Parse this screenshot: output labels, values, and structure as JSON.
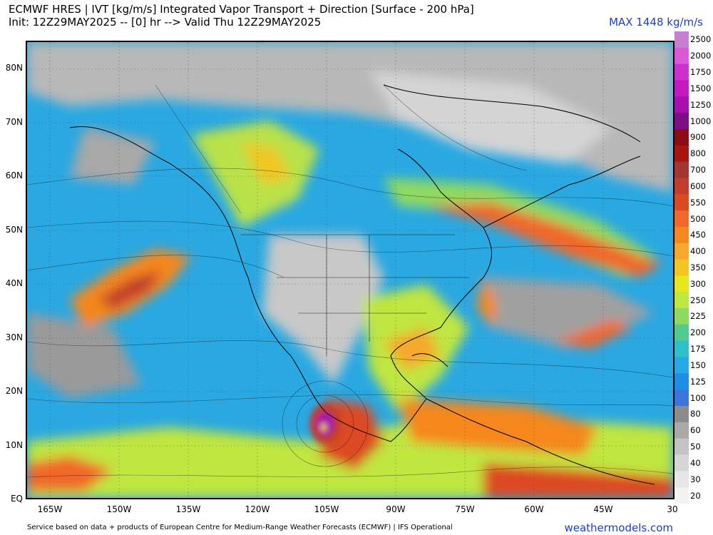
{
  "header": {
    "title_line1": "ECMWF HRES | IVT [kg/m/s] Integrated Vapor Transport + Direction [Surface - 200 hPa]",
    "title_line2": "Init: 12Z29MAY2025 -- [0] hr --> Valid Thu 12Z29MAY2025",
    "max_label": "MAX 1448 kg/m/s"
  },
  "footer": {
    "credit": "Service based on data + products of European Centre for Medium-Range Weather Forecasts (ECMWF) | IFS Operational",
    "site": "weathermodels.com"
  },
  "axes": {
    "lat_labels": [
      "80N",
      "70N",
      "60N",
      "50N",
      "40N",
      "30N",
      "20N",
      "10N",
      "EQ"
    ],
    "lon_labels": [
      "165W",
      "150W",
      "135W",
      "120W",
      "105W",
      "90W",
      "75W",
      "60W",
      "45W",
      "30"
    ]
  },
  "colorbar": {
    "labels": [
      "2500",
      "2000",
      "1750",
      "1500",
      "1250",
      "1000",
      "900",
      "800",
      "700",
      "600",
      "550",
      "500",
      "450",
      "400",
      "350",
      "300",
      "250",
      "225",
      "200",
      "175",
      "150",
      "125",
      "100",
      "80",
      "60",
      "50",
      "40",
      "30",
      "20"
    ],
    "colors": [
      "#c77fd0",
      "#d85ad6",
      "#cf2fd0",
      "#c318c4",
      "#a90fb0",
      "#7d0e85",
      "#8e0a14",
      "#a8140e",
      "#a33532",
      "#c23d2c",
      "#dc4a22",
      "#f1682b",
      "#f5871e",
      "#f6a82a",
      "#f1c620",
      "#e6e81e",
      "#c0e640",
      "#8fd962",
      "#51cc8e",
      "#2fc1c9",
      "#27a9e6",
      "#1e8de8",
      "#3b74da",
      "#8c8c8c",
      "#a9a9a9",
      "#c3c3c3",
      "#d6d6d6",
      "#e6e6e6",
      "#f2f2f2"
    ]
  }
}
